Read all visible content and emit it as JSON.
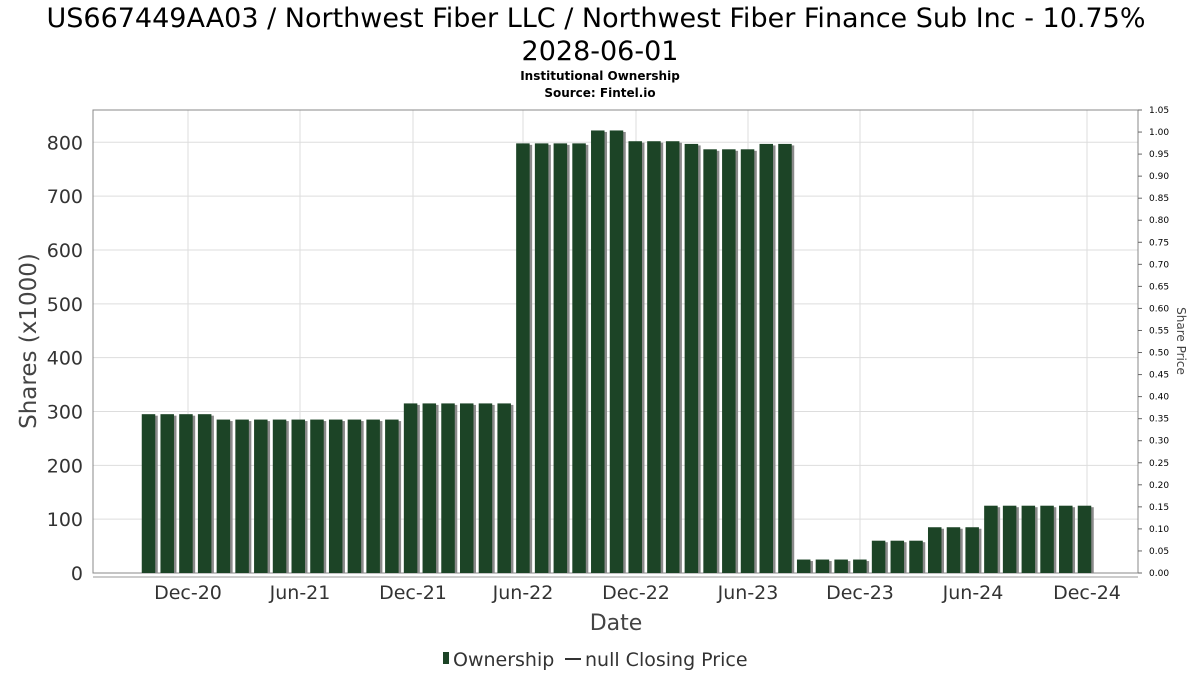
{
  "header": {
    "title_line1": "US667449AA03 / Northwest Fiber LLC / Northwest Fiber Finance Sub Inc - 10.75%",
    "title_line2": "2028-06-01",
    "subtitle1": "Institutional Ownership",
    "subtitle2": "Source: Fintel.io"
  },
  "colors": {
    "bar": "#1c4426",
    "bar_shadow": "#8a8a8a",
    "grid": "#dddddd",
    "frame": "#888888"
  },
  "chart_data": {
    "type": "bar",
    "xlabel": "Date",
    "ylabel": "Shares (x1000)",
    "y2label": "Share Price",
    "ylim": [
      0,
      860
    ],
    "yticks": [
      0,
      100,
      200,
      300,
      400,
      500,
      600,
      700,
      800
    ],
    "y2lim": [
      0,
      1.05
    ],
    "y2ticks": [
      "0.00",
      "0.05",
      "0.10",
      "0.15",
      "0.20",
      "0.25",
      "0.30",
      "0.35",
      "0.40",
      "0.45",
      "0.50",
      "0.55",
      "0.60",
      "0.65",
      "0.70",
      "0.75",
      "0.80",
      "0.85",
      "0.90",
      "0.95",
      "1.00",
      "1.05"
    ],
    "x_tick_labels": [
      "Dec-20",
      "Jun-21",
      "Dec-21",
      "Jun-22",
      "Dec-22",
      "Jun-23",
      "Dec-23",
      "Jun-24",
      "Dec-24"
    ],
    "grid": true,
    "legend_position": "bottom",
    "series": [
      {
        "name": "Ownership",
        "values": [
          295,
          295,
          295,
          295,
          285,
          285,
          285,
          285,
          285,
          285,
          285,
          285,
          285,
          285,
          315,
          315,
          315,
          315,
          315,
          315,
          798,
          798,
          798,
          798,
          822,
          822,
          802,
          802,
          802,
          797,
          787,
          787,
          787,
          797,
          797,
          25,
          25,
          25,
          25,
          60,
          60,
          60,
          85,
          85,
          85,
          125,
          125,
          125,
          125,
          125,
          125
        ]
      }
    ],
    "legend": [
      "Ownership",
      "null Closing Price"
    ]
  }
}
